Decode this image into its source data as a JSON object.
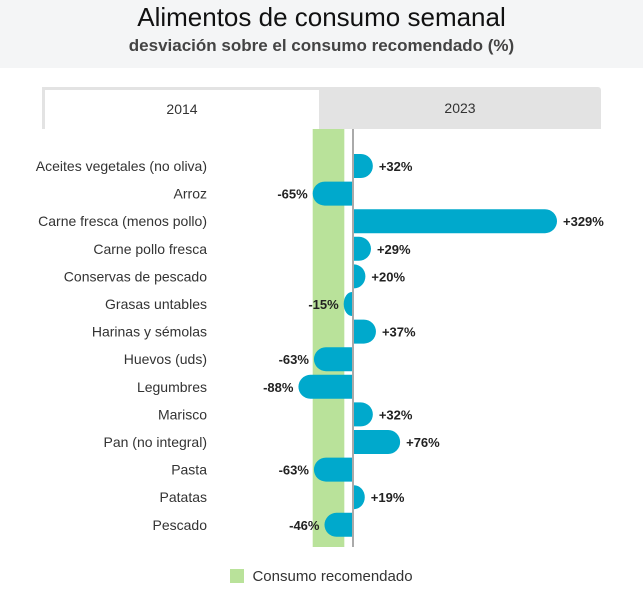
{
  "header": {
    "title": "Alimentos de consumo semanal",
    "subtitle": "desviación sobre el consumo recomendado (%)"
  },
  "tabs": [
    {
      "label": "2014",
      "active": true
    },
    {
      "label": "2023",
      "active": false
    }
  ],
  "legend": {
    "label": "Consumo recomendado",
    "color": "#b9e29a"
  },
  "colors": {
    "bar": "#00a9cc",
    "band": "#b9e29a",
    "axis": "#555555",
    "label": "#222222"
  },
  "chart_data": {
    "type": "bar",
    "orientation": "horizontal",
    "title": "Alimentos de consumo semanal",
    "subtitle": "desviación sobre el consumo recomendado (%)",
    "categories": [
      "Aceites vegetales (no oliva)",
      "Arroz",
      "Carne fresca (menos pollo)",
      "Carne pollo fresca",
      "Conservas de pescado",
      "Grasas untables",
      "Harinas y sémolas",
      "Huevos (uds)",
      "Legumbres",
      "Marisco",
      "Pan (no integral)",
      "Pasta",
      "Patatas",
      "Pescado"
    ],
    "values": [
      32,
      -65,
      329,
      29,
      20,
      -15,
      37,
      -63,
      -88,
      32,
      76,
      -63,
      19,
      -46
    ],
    "value_labels": [
      "+32%",
      "-65%",
      "+329%",
      "+29%",
      "+20%",
      "-15%",
      "+37%",
      "-63%",
      "-88%",
      "+32%",
      "+76%",
      "-63%",
      "+19%",
      "-46%"
    ],
    "reference_band": {
      "label": "Consumo recomendado",
      "from": -65,
      "to": -14
    },
    "xlim": [
      -95,
      340
    ],
    "series_name": "2014",
    "legend": "bottom-center"
  }
}
